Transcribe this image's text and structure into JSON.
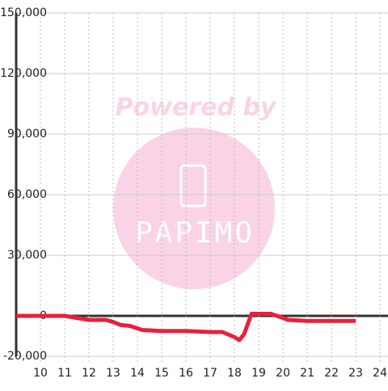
{
  "chart_data": {
    "type": "line",
    "watermark": {
      "text": "Powered by",
      "logo": "PAPIMO"
    },
    "x": [
      9,
      11,
      11.5,
      12,
      12.7,
      13,
      13.3,
      13.7,
      14.2,
      15,
      16,
      17,
      17.5,
      18,
      18.2,
      18.4,
      18.7,
      19.5,
      20,
      20.2,
      21,
      23
    ],
    "series": [
      {
        "color": "#e8203a",
        "values": [
          0,
          0,
          -1000,
          -2000,
          -2000,
          -3000,
          -4500,
          -5000,
          -7000,
          -7500,
          -7500,
          -8000,
          -8000,
          -10500,
          -12000,
          -9000,
          1000,
          1000,
          -1000,
          -2000,
          -2500,
          -2500
        ]
      }
    ],
    "xlim": [
      9,
      24.33
    ],
    "xticks": [
      10,
      11,
      12,
      13,
      14,
      15,
      16,
      17,
      18,
      19,
      20,
      21,
      22,
      23,
      24
    ],
    "ylim": [
      -20000,
      150000
    ],
    "yticks": [
      {
        "value": -20000,
        "label": "-20,000"
      },
      0,
      {
        "value": 30000,
        "label": "30,000"
      },
      {
        "value": 60000,
        "label": "60,000"
      },
      {
        "value": 90000,
        "label": "90,000"
      },
      {
        "value": 120000,
        "label": "120,000"
      },
      {
        "value": 150000,
        "label": "150,000"
      }
    ],
    "grid": true
  }
}
